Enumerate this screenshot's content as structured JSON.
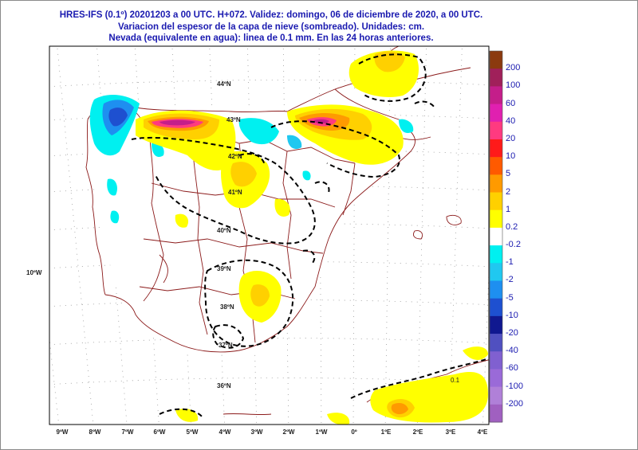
{
  "header": {
    "line1": "HRES-IFS (0.1º) 20201203 a 00 UTC.  H+072. Validez: domingo, 06 de diciembre de 2020,  a  00 UTC.",
    "line2": "Variacion del espesor de la capa de nieve (sombreado). Unidades: cm.",
    "line3": "Nevada (equivalente en agua): linea de 0.1 mm. En las 24 horas anteriores."
  },
  "map": {
    "lat_labels": [
      "44ºN",
      "43ºN",
      "42ºN",
      "41ºN",
      "40ºN",
      "39ºN",
      "38ºN",
      "37ºN",
      "36ºN"
    ],
    "lon_labels": [
      "9ºW",
      "8ºW",
      "7ºW",
      "6ºW",
      "5ºW",
      "4ºW",
      "3ºW",
      "2ºW",
      "1ºW",
      "0º",
      "1ºE",
      "2ºE",
      "3ºE",
      "4ºE"
    ],
    "side_label": "10ºW",
    "contour_label": "0.1"
  },
  "legend": {
    "labels": [
      "200",
      "100",
      "60",
      "40",
      "20",
      "10",
      "5",
      "2",
      "1",
      "0.2",
      "-0.2",
      "-1",
      "-2",
      "-5",
      "-10",
      "-20",
      "-40",
      "-60",
      "-100",
      "-200"
    ],
    "colors": [
      "#8b3a0f",
      "#a0205a",
      "#c41e8a",
      "#e020b0",
      "#ff3a80",
      "#ff1a1a",
      "#ff5a00",
      "#ff9a00",
      "#ffd000",
      "#ffff00",
      "#ffffff",
      "#00f0f0",
      "#20c8f0",
      "#1e8ff0",
      "#1e50d0",
      "#101890",
      "#5050c0",
      "#8060d0",
      "#9a6ad8",
      "#b080d8",
      "#a060c0"
    ]
  }
}
